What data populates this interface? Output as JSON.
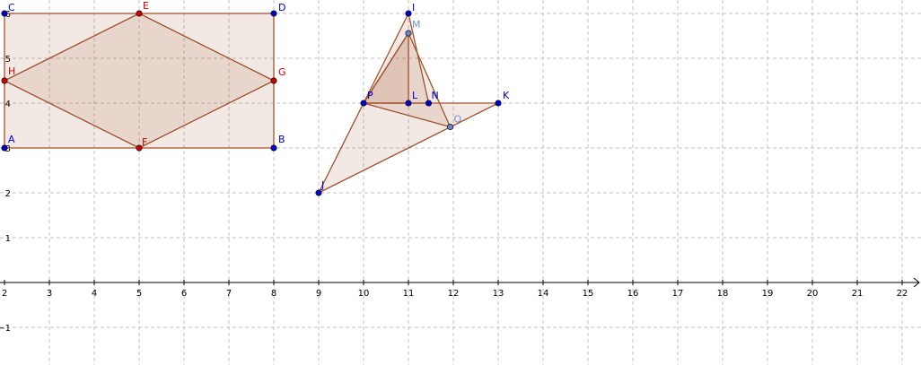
{
  "canvas": {
    "background": "#ffffff",
    "grid_color": "#c0c0c0",
    "axis_color": "#000000"
  },
  "axes": {
    "x_tick_labels": [
      "2",
      "3",
      "4",
      "5",
      "6",
      "7",
      "8",
      "9",
      "10",
      "11",
      "12",
      "13",
      "14",
      "15",
      "16",
      "17",
      "18",
      "19",
      "20",
      "21",
      "22"
    ],
    "y_tick_labels": [
      {
        "text": "1",
        "y": 1
      },
      {
        "text": "2",
        "y": 2
      },
      {
        "text": "3",
        "y": 3
      },
      {
        "text": "4",
        "y": 4
      },
      {
        "text": "5",
        "y": 5
      },
      {
        "text": "6",
        "y": 6
      },
      {
        "text": "−1",
        "y": -1
      }
    ]
  },
  "colors": {
    "polygon_stroke": "#a0522d",
    "polygon_fill": "rgba(160,82,45,0.13)",
    "dark_blue_point": "#0000cc",
    "red_point": "#cc0000",
    "light_blue_point": "#6f82c6",
    "dark_blue_label": "#0000cc",
    "red_label": "#cc0000",
    "light_blue_label": "#7a8bd0"
  },
  "points": [
    {
      "name": "A",
      "x": 2,
      "y": 3,
      "style": "dark_blue"
    },
    {
      "name": "B",
      "x": 8,
      "y": 3,
      "style": "dark_blue"
    },
    {
      "name": "C",
      "x": 2,
      "y": 6,
      "style": "dark_blue"
    },
    {
      "name": "D",
      "x": 8,
      "y": 6,
      "style": "dark_blue"
    },
    {
      "name": "E",
      "x": 5,
      "y": 6,
      "style": "red"
    },
    {
      "name": "F",
      "x": 5,
      "y": 3,
      "style": "red"
    },
    {
      "name": "G",
      "x": 8,
      "y": 4.5,
      "style": "red"
    },
    {
      "name": "H",
      "x": 2,
      "y": 4.5,
      "style": "red"
    },
    {
      "name": "I",
      "x": 11,
      "y": 6,
      "style": "dark_blue"
    },
    {
      "name": "J",
      "x": 9,
      "y": 2,
      "style": "dark_blue"
    },
    {
      "name": "K",
      "x": 13,
      "y": 4,
      "style": "dark_blue"
    },
    {
      "name": "L",
      "x": 11,
      "y": 4,
      "style": "dark_blue"
    },
    {
      "name": "M",
      "x": 11,
      "y": 5.56,
      "style": "light_blue"
    },
    {
      "name": "N",
      "x": 11.45,
      "y": 4,
      "style": "dark_blue"
    },
    {
      "name": "O",
      "x": 11.93,
      "y": 3.47,
      "style": "light_blue"
    },
    {
      "name": "P",
      "x": 10,
      "y": 4,
      "style": "dark_blue"
    }
  ],
  "polygons": [
    {
      "name": "rectangle-ABDC",
      "vertices": [
        "A",
        "B",
        "D",
        "C"
      ]
    },
    {
      "name": "rhombus-EGFH",
      "vertices": [
        "E",
        "G",
        "F",
        "H"
      ]
    },
    {
      "name": "triangle-PIN",
      "vertices": [
        "P",
        "I",
        "N"
      ]
    },
    {
      "name": "triangle-PLM",
      "vertices": [
        "P",
        "L",
        "M"
      ]
    },
    {
      "name": "triangle-JKP",
      "vertices": [
        "J",
        "K",
        "P"
      ]
    },
    {
      "name": "triangle-PMO",
      "vertices": [
        "P",
        "M",
        "O"
      ]
    }
  ]
}
